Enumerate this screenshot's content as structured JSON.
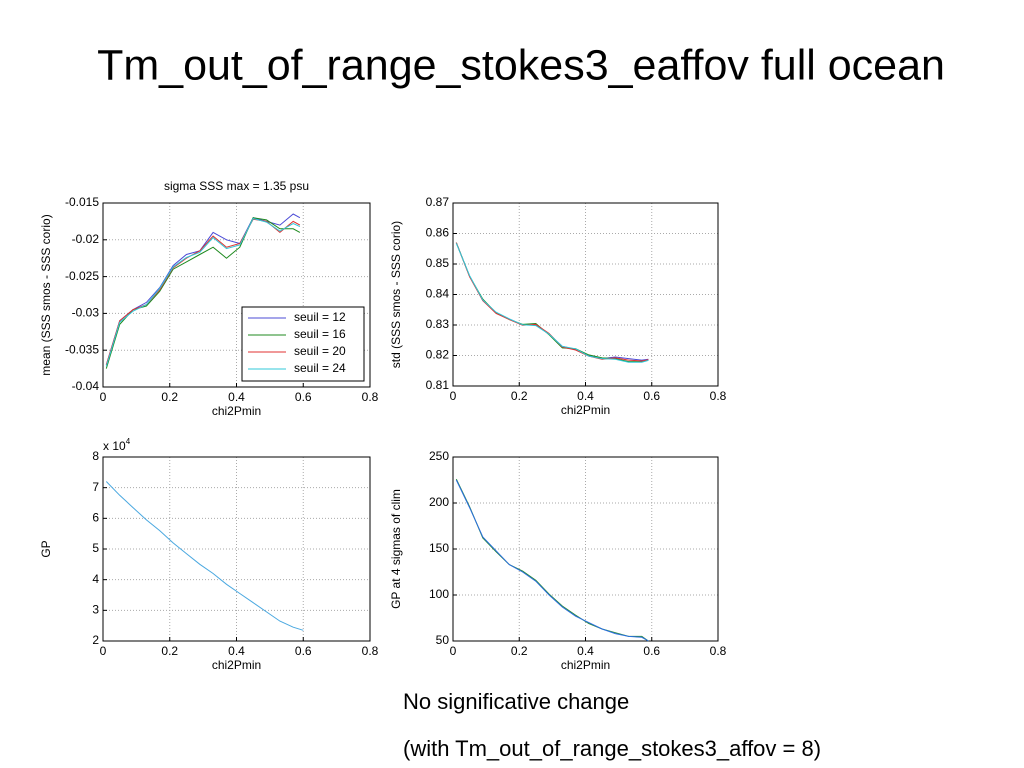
{
  "title": "Tm_out_of_range_stokes3_eaffov full ocean",
  "notes": [
    "No significative change",
    "(with Tm_out_of_range_stokes3_affov = 8)"
  ],
  "chart_data": [
    {
      "type": "line",
      "title": "sigma SSS max = 1.35 psu",
      "x_label": "chi2Pmin",
      "y_label": "mean (SSS smos - SSS corio)",
      "xlim": [
        0,
        0.8
      ],
      "xticks": [
        0,
        0.2,
        0.4,
        0.6,
        0.8
      ],
      "ylim": [
        -0.04,
        -0.015
      ],
      "yticks": [
        -0.04,
        -0.035,
        -0.03,
        -0.025,
        -0.02,
        -0.015
      ],
      "grid": true,
      "legend": "lower right",
      "x": [
        0.01,
        0.05,
        0.09,
        0.13,
        0.17,
        0.21,
        0.25,
        0.29,
        0.33,
        0.37,
        0.41,
        0.45,
        0.49,
        0.53,
        0.57,
        0.59
      ],
      "series": [
        {
          "name": "seuil = 12",
          "color": "#4b4bd6",
          "values": [
            -0.037,
            -0.031,
            -0.0295,
            -0.0285,
            -0.0265,
            -0.0235,
            -0.022,
            -0.0215,
            -0.019,
            -0.02,
            -0.0205,
            -0.017,
            -0.0175,
            -0.018,
            -0.0165,
            -0.017
          ]
        },
        {
          "name": "seuil = 16",
          "color": "#1f8a1f",
          "values": [
            -0.0375,
            -0.0315,
            -0.0295,
            -0.029,
            -0.027,
            -0.024,
            -0.023,
            -0.022,
            -0.021,
            -0.0225,
            -0.021,
            -0.017,
            -0.0173,
            -0.0185,
            -0.0185,
            -0.019
          ]
        },
        {
          "name": "seuil = 20",
          "color": "#e03030",
          "values": [
            -0.037,
            -0.031,
            -0.0295,
            -0.0288,
            -0.0268,
            -0.0238,
            -0.0225,
            -0.0215,
            -0.0195,
            -0.021,
            -0.0205,
            -0.0172,
            -0.0175,
            -0.019,
            -0.0175,
            -0.018
          ]
        },
        {
          "name": "seuil = 24",
          "color": "#30c8d8",
          "values": [
            -0.0372,
            -0.0312,
            -0.0297,
            -0.0288,
            -0.0266,
            -0.0237,
            -0.0224,
            -0.0217,
            -0.0197,
            -0.0212,
            -0.0207,
            -0.0171,
            -0.0176,
            -0.0188,
            -0.0178,
            -0.0182
          ]
        }
      ]
    },
    {
      "type": "line",
      "x_label": "chi2Pmin",
      "y_label": "std (SSS smos - SSS corio)",
      "xlim": [
        0,
        0.8
      ],
      "xticks": [
        0,
        0.2,
        0.4,
        0.6,
        0.8
      ],
      "ylim": [
        0.81,
        0.87
      ],
      "yticks": [
        0.81,
        0.82,
        0.83,
        0.84,
        0.85,
        0.86,
        0.87
      ],
      "grid": true,
      "x": [
        0.01,
        0.05,
        0.09,
        0.13,
        0.17,
        0.21,
        0.25,
        0.29,
        0.33,
        0.37,
        0.41,
        0.45,
        0.49,
        0.53,
        0.57,
        0.59
      ],
      "series": [
        {
          "color": "#4b4bd6",
          "values": [
            0.857,
            0.846,
            0.838,
            0.834,
            0.832,
            0.83,
            0.83,
            0.827,
            0.823,
            0.822,
            0.82,
            0.819,
            0.8195,
            0.819,
            0.8185,
            0.8188
          ]
        },
        {
          "color": "#1f8a1f",
          "values": [
            0.857,
            0.846,
            0.8385,
            0.834,
            0.8318,
            0.8302,
            0.8305,
            0.8268,
            0.8225,
            0.8222,
            0.8202,
            0.8192,
            0.819,
            0.818,
            0.818,
            0.8185
          ]
        },
        {
          "color": "#e03030",
          "values": [
            0.857,
            0.8458,
            0.838,
            0.8338,
            0.8318,
            0.8299,
            0.8302,
            0.8272,
            0.8228,
            0.8218,
            0.8198,
            0.8188,
            0.8192,
            0.8185,
            0.8182,
            0.8186
          ]
        },
        {
          "color": "#30c8d8",
          "values": [
            0.8568,
            0.8462,
            0.8382,
            0.8342,
            0.832,
            0.8301,
            0.8298,
            0.827,
            0.823,
            0.8222,
            0.8198,
            0.819,
            0.8188,
            0.8178,
            0.8178,
            0.8184
          ]
        }
      ]
    },
    {
      "type": "line",
      "x_label": "chi2Pmin",
      "y_label": "GP",
      "multiplier": "x 10",
      "multiplier_exp": "4",
      "xlim": [
        0,
        0.8
      ],
      "xticks": [
        0,
        0.2,
        0.4,
        0.6,
        0.8
      ],
      "ylim": [
        2,
        8
      ],
      "yticks": [
        2,
        3,
        4,
        5,
        6,
        7,
        8
      ],
      "grid": true,
      "x": [
        0.01,
        0.05,
        0.09,
        0.13,
        0.17,
        0.21,
        0.25,
        0.29,
        0.33,
        0.37,
        0.41,
        0.45,
        0.49,
        0.53,
        0.57,
        0.6
      ],
      "series": [
        {
          "color": "#4aa8e0",
          "values": [
            7.2,
            6.75,
            6.35,
            5.95,
            5.6,
            5.2,
            4.85,
            4.5,
            4.2,
            3.85,
            3.55,
            3.25,
            2.95,
            2.65,
            2.45,
            2.35
          ]
        }
      ]
    },
    {
      "type": "line",
      "x_label": "chi2Pmin",
      "y_label": "GP at 4 sigmas of clim",
      "xlim": [
        0,
        0.8
      ],
      "xticks": [
        0,
        0.2,
        0.4,
        0.6,
        0.8
      ],
      "ylim": [
        50,
        250
      ],
      "yticks": [
        50,
        100,
        150,
        200,
        250
      ],
      "grid": true,
      "x": [
        0.01,
        0.05,
        0.09,
        0.13,
        0.17,
        0.21,
        0.25,
        0.29,
        0.33,
        0.37,
        0.41,
        0.45,
        0.49,
        0.53,
        0.57,
        0.59
      ],
      "series": [
        {
          "color": "#2a8a3a",
          "values": [
            226,
            196,
            162,
            147,
            133,
            126,
            116,
            101,
            88,
            78,
            69,
            63,
            59,
            55,
            55,
            50
          ]
        },
        {
          "color": "#2a6ee0",
          "values": [
            225,
            195,
            163,
            148,
            133,
            125,
            115,
            100,
            87,
            77,
            70,
            63,
            58,
            55,
            54,
            50
          ]
        }
      ]
    }
  ]
}
